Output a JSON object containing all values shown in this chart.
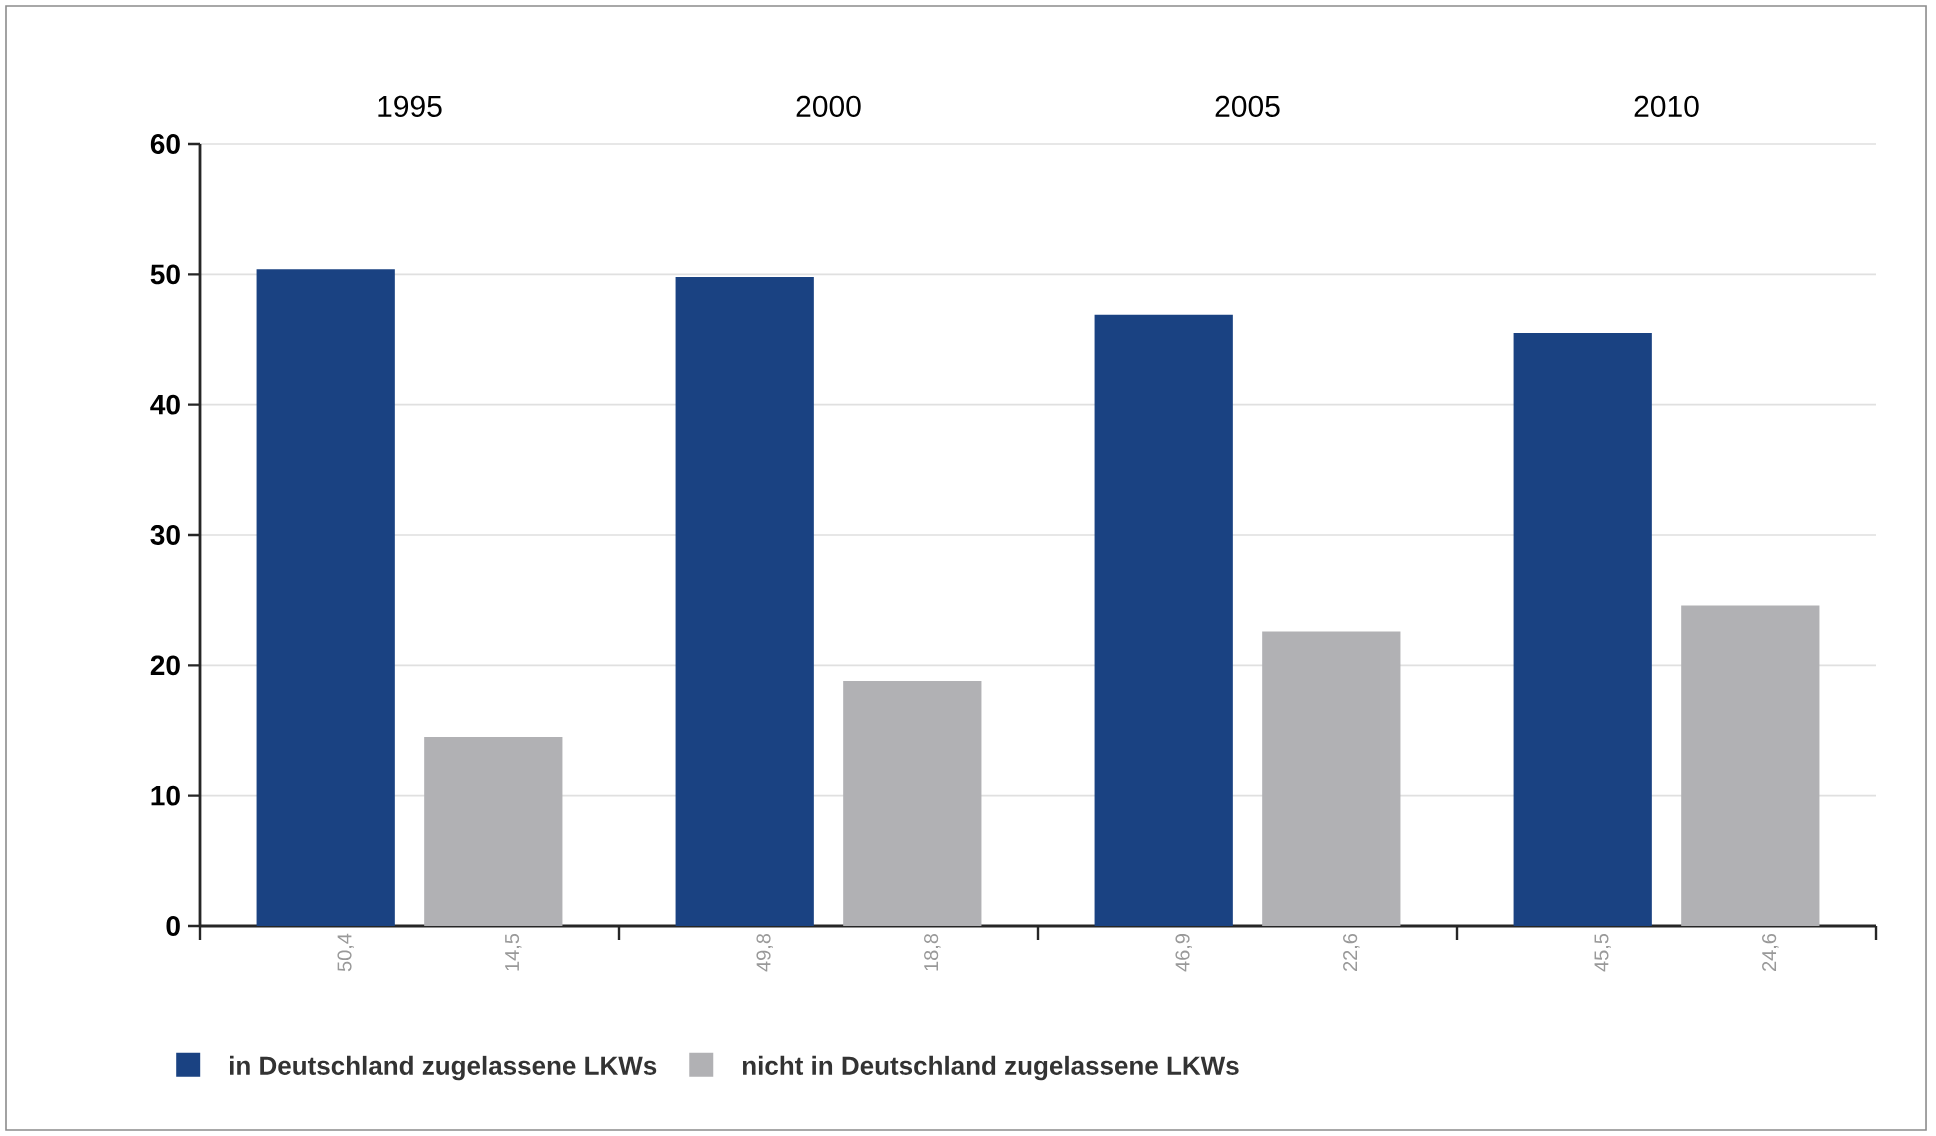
{
  "chart_data": {
    "type": "bar",
    "categories": [
      "1995",
      "2000",
      "2005",
      "2010"
    ],
    "series": [
      {
        "name": "in Deutschland zugelassene LKWs",
        "color": "#1a4282",
        "values": [
          50.4,
          49.8,
          46.9,
          45.5
        ],
        "value_labels": [
          "50,4",
          "49,8",
          "46,9",
          "45,5"
        ]
      },
      {
        "name": "nicht in Deutschland zugelassene LKWs",
        "color": "#b1b1b4",
        "values": [
          14.5,
          18.8,
          22.6,
          24.6
        ],
        "value_labels": [
          "14,5",
          "18,8",
          "22,6",
          "24,6"
        ]
      }
    ],
    "ylim": [
      0,
      60
    ],
    "yticks": [
      0,
      10,
      20,
      30,
      40,
      50,
      60
    ],
    "grid": "y",
    "legend": "bottom"
  }
}
